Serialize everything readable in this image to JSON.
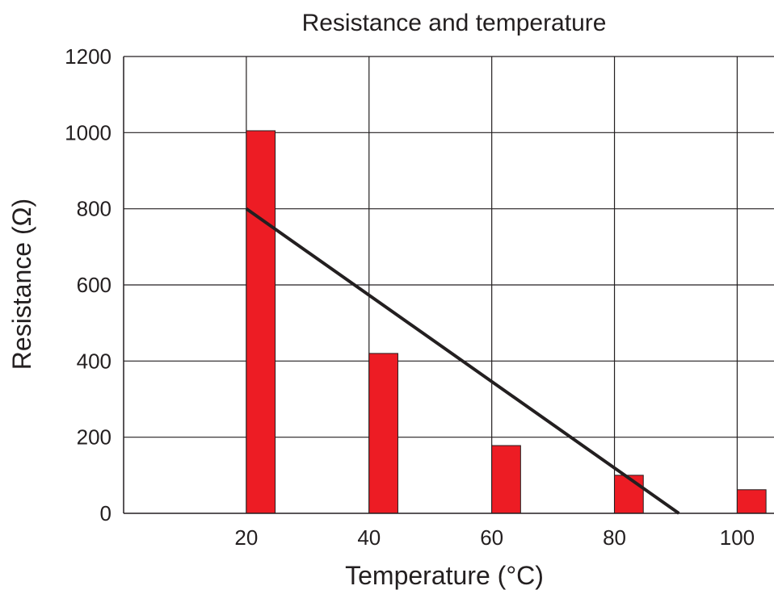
{
  "chart_data": {
    "type": "bar",
    "title": "Resistance and temperature",
    "xlabel": "Temperature (°C)",
    "ylabel": "Resistance (Ω)",
    "categories": [
      "20",
      "40",
      "60",
      "80",
      "100"
    ],
    "x": [
      20,
      40,
      60,
      80,
      100
    ],
    "values": [
      1005,
      420,
      178,
      100,
      62
    ],
    "xlim": [
      0,
      106
    ],
    "ylim": [
      0,
      1200
    ],
    "y_ticks": [
      0,
      200,
      400,
      600,
      800,
      1000,
      1200
    ],
    "x_ticks": [
      20,
      40,
      60,
      80,
      100
    ],
    "trendline": {
      "x": [
        20,
        90.5
      ],
      "y": [
        800,
        0
      ]
    },
    "grid": true,
    "colors": {
      "bar": "#ed1c24",
      "bar_edge": "#231f20",
      "trendline": "#231f20",
      "grid": "#231f20",
      "text": "#231f20"
    }
  }
}
